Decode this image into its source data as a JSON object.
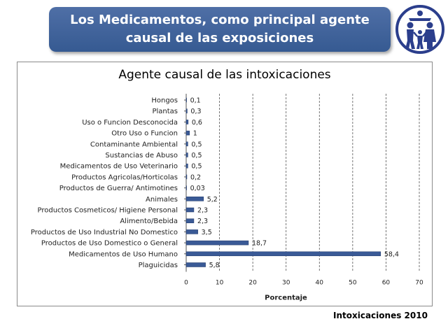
{
  "banner": {
    "title": "Los Medicamentos, como principal agente causal de las exposiciones"
  },
  "logo": {
    "icon": "family-logo-icon",
    "color": "#2b3e8c"
  },
  "footer": {
    "note": "Intoxicaciones 2010"
  },
  "chart_data": {
    "type": "bar",
    "orientation": "horizontal",
    "title": "Agente causal de las intoxicaciones",
    "xlabel": "Porcentaje",
    "ylabel": "",
    "xlim": [
      0,
      70
    ],
    "xticks": [
      0,
      10,
      20,
      30,
      40,
      50,
      60,
      70
    ],
    "grid": "vertical dashed",
    "categories": [
      "Hongos",
      "Plantas",
      "Uso o Funcion Desconocida",
      "Otro Uso o Funcion",
      "Contaminante Ambiental",
      "Sustancias de Abuso",
      "Medicamentos de Uso Veterinario",
      "Productos Agricolas/Horticolas",
      "Productos de Guerra/ Antimotines",
      "Animales",
      "Productos Cosmeticos/ Higiene Personal",
      "Alimento/Bebida",
      "Productos de Uso Industrial No Domestico",
      "Productos de Uso Domestico o General",
      "Medicamentos de Uso Humano",
      "Plaguicidas"
    ],
    "values": [
      0.1,
      0.3,
      0.6,
      1,
      0.5,
      0.5,
      0.5,
      0.2,
      0.03,
      5.2,
      2.3,
      2.3,
      3.5,
      18.7,
      58.4,
      5.8
    ],
    "value_labels": [
      "0,1",
      "0,3",
      "0,6",
      "1",
      "0,5",
      "0,5",
      "0,5",
      "0,2",
      "0,03",
      "5,2",
      "2,3",
      "2,3",
      "3,5",
      "18,7",
      "58,4",
      "5,8"
    ],
    "bar_color": "#3a5a96"
  }
}
